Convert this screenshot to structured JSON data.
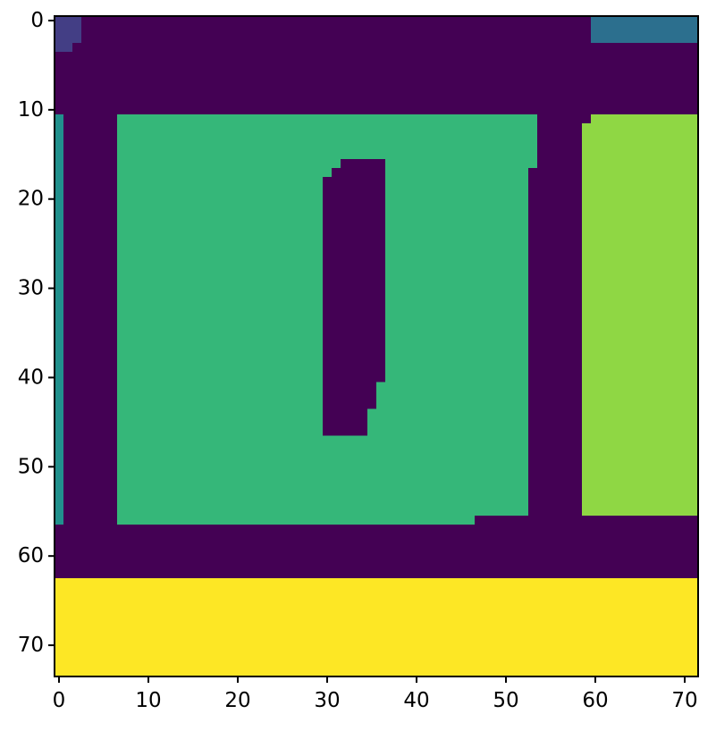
{
  "chart_data": {
    "type": "heatmap",
    "title": "",
    "xlabel": "",
    "ylabel": "",
    "xlim": [
      -0.5,
      71.5
    ],
    "ylim": [
      73.5,
      -0.5
    ],
    "xticks": [
      0,
      10,
      20,
      30,
      40,
      50,
      60,
      70
    ],
    "yticks": [
      0,
      10,
      20,
      30,
      40,
      50,
      60,
      70
    ],
    "xtick_labels": [
      "0",
      "10",
      "20",
      "30",
      "40",
      "50",
      "60",
      "70"
    ],
    "ytick_labels": [
      "0",
      "10",
      "20",
      "30",
      "40",
      "50",
      "60",
      "70"
    ],
    "grid": false,
    "colormap": "viridis",
    "background_color": "#440154",
    "regions": [
      {
        "label": "purple-corner",
        "color": "#433e85",
        "rows": [
          0,
          2
        ],
        "cols": [
          0,
          2
        ]
      },
      {
        "label": "purple-corner",
        "color": "#433e85",
        "rows": [
          3,
          3
        ],
        "cols": [
          0,
          1
        ]
      },
      {
        "label": "blue-top-right",
        "color": "#2c6f8e",
        "rows": [
          0,
          2
        ],
        "cols": [
          60,
          71
        ]
      },
      {
        "label": "teal-strip",
        "color": "#21908d",
        "rows": [
          11,
          56
        ],
        "cols": [
          0,
          0
        ]
      },
      {
        "label": "green-block",
        "color": "#35b779",
        "rows": [
          11,
          16
        ],
        "cols": [
          7,
          53
        ]
      },
      {
        "label": "green-block",
        "color": "#35b779",
        "rows": [
          17,
          55
        ],
        "cols": [
          7,
          52
        ]
      },
      {
        "label": "green-block",
        "color": "#35b779",
        "rows": [
          56,
          56
        ],
        "cols": [
          7,
          46
        ]
      },
      {
        "label": "hole",
        "color": "#440154",
        "rows": [
          16,
          16
        ],
        "cols": [
          32,
          36
        ]
      },
      {
        "label": "hole",
        "color": "#440154",
        "rows": [
          17,
          17
        ],
        "cols": [
          31,
          36
        ]
      },
      {
        "label": "hole",
        "color": "#440154",
        "rows": [
          18,
          40
        ],
        "cols": [
          30,
          36
        ]
      },
      {
        "label": "hole",
        "color": "#440154",
        "rows": [
          41,
          43
        ],
        "cols": [
          30,
          35
        ]
      },
      {
        "label": "hole",
        "color": "#440154",
        "rows": [
          44,
          46
        ],
        "cols": [
          30,
          34
        ]
      },
      {
        "label": "lime-block",
        "color": "#8fd744",
        "rows": [
          11,
          11
        ],
        "cols": [
          60,
          71
        ]
      },
      {
        "label": "lime-block",
        "color": "#8fd744",
        "rows": [
          12,
          55
        ],
        "cols": [
          59,
          71
        ]
      },
      {
        "label": "yellow-bottom",
        "color": "#fde725",
        "rows": [
          63,
          73
        ],
        "cols": [
          0,
          71
        ]
      }
    ]
  }
}
